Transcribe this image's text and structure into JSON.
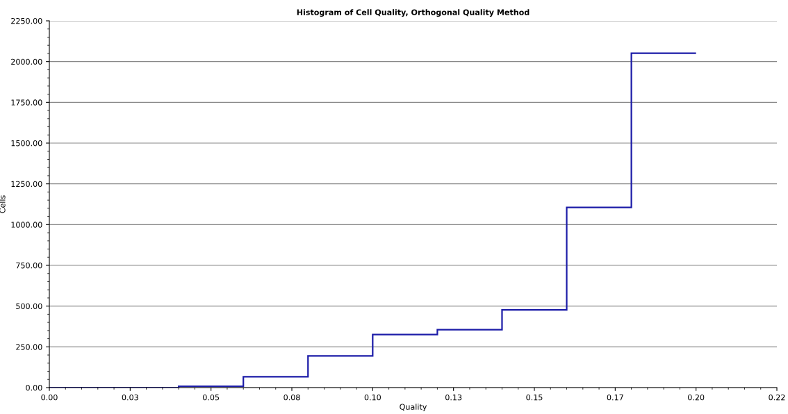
{
  "chart_data": {
    "type": "histogram",
    "title": "Histogram of Cell Quality, Orthogonal Quality Method",
    "xlabel": "Quality",
    "ylabel": "Cells",
    "bins": [
      0,
      0.02,
      0.04,
      0.06,
      0.08,
      0.1,
      0.12,
      0.14,
      0.16,
      0.18,
      0.2
    ],
    "values": [
      0,
      0,
      8,
      67,
      194,
      325,
      355,
      477,
      1105,
      2051
    ],
    "color": "#1c1ca8",
    "xlim": [
      0,
      0.225
    ],
    "xticks": [
      {
        "value": 0,
        "label": "0.00"
      },
      {
        "value": 0.025,
        "label": "0.03"
      },
      {
        "value": 0.05,
        "label": "0.05"
      },
      {
        "value": 0.075,
        "label": "0.08"
      },
      {
        "value": 0.1,
        "label": "0.10"
      },
      {
        "value": 0.125,
        "label": "0.13"
      },
      {
        "value": 0.15,
        "label": "0.15"
      },
      {
        "value": 0.175,
        "label": "0.17"
      },
      {
        "value": 0.2,
        "label": "0.20"
      },
      {
        "value": 0.225,
        "label": "0.22"
      }
    ],
    "ylim": [
      0,
      2250
    ],
    "yticks": [
      {
        "value": 0,
        "label": "0.00"
      },
      {
        "value": 250,
        "label": "250.00"
      },
      {
        "value": 500,
        "label": "500.00"
      },
      {
        "value": 750,
        "label": "750.00"
      },
      {
        "value": 1000,
        "label": "1000.00"
      },
      {
        "value": 1250,
        "label": "1250.00"
      },
      {
        "value": 1500,
        "label": "1500.00"
      },
      {
        "value": 1750,
        "label": "1750.00"
      },
      {
        "value": 2000,
        "label": "2000.00"
      },
      {
        "value": 2250,
        "label": "2250.00"
      }
    ],
    "grid": "y"
  }
}
